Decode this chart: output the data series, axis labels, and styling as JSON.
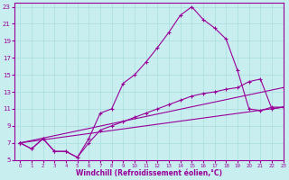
{
  "xlabel": "Windchill (Refroidissement éolien,°C)",
  "bg_color": "#c8eef0",
  "line_color": "#990099",
  "grid_color": "#aadddd",
  "xlim": [
    -0.5,
    23
  ],
  "ylim": [
    5,
    23.5
  ],
  "xticks": [
    0,
    1,
    2,
    3,
    4,
    5,
    6,
    7,
    8,
    9,
    10,
    11,
    12,
    13,
    14,
    15,
    16,
    17,
    18,
    19,
    20,
    21,
    22,
    23
  ],
  "yticks": [
    5,
    7,
    9,
    11,
    13,
    15,
    17,
    19,
    21,
    23
  ],
  "line1_x": [
    0,
    1,
    2,
    3,
    4,
    5,
    6,
    7,
    8,
    9,
    10,
    11,
    12,
    13,
    14,
    15,
    16,
    17,
    18,
    19,
    20,
    21,
    22,
    23
  ],
  "line1_y": [
    7.0,
    6.3,
    7.5,
    6.0,
    6.0,
    5.3,
    7.5,
    10.5,
    11.0,
    14.0,
    15.0,
    16.5,
    18.2,
    20.0,
    22.0,
    23.0,
    21.5,
    20.5,
    19.2,
    15.5,
    11.0,
    10.8,
    11.2,
    11.2
  ],
  "line2_x": [
    0,
    1,
    2,
    3,
    4,
    5,
    6,
    7,
    8,
    9,
    10,
    11,
    12,
    13,
    14,
    15,
    16,
    17,
    18,
    19,
    20,
    21,
    22,
    23
  ],
  "line2_y": [
    7.0,
    6.3,
    7.5,
    6.0,
    6.0,
    5.3,
    7.0,
    8.5,
    9.0,
    9.5,
    10.0,
    10.5,
    11.0,
    11.5,
    12.0,
    12.5,
    12.8,
    13.0,
    13.3,
    13.5,
    14.2,
    14.5,
    11.0,
    11.2
  ],
  "line3_x": [
    0,
    23
  ],
  "line3_y": [
    7.0,
    11.2
  ],
  "line4_x": [
    0,
    23
  ],
  "line4_y": [
    7.0,
    13.5
  ]
}
